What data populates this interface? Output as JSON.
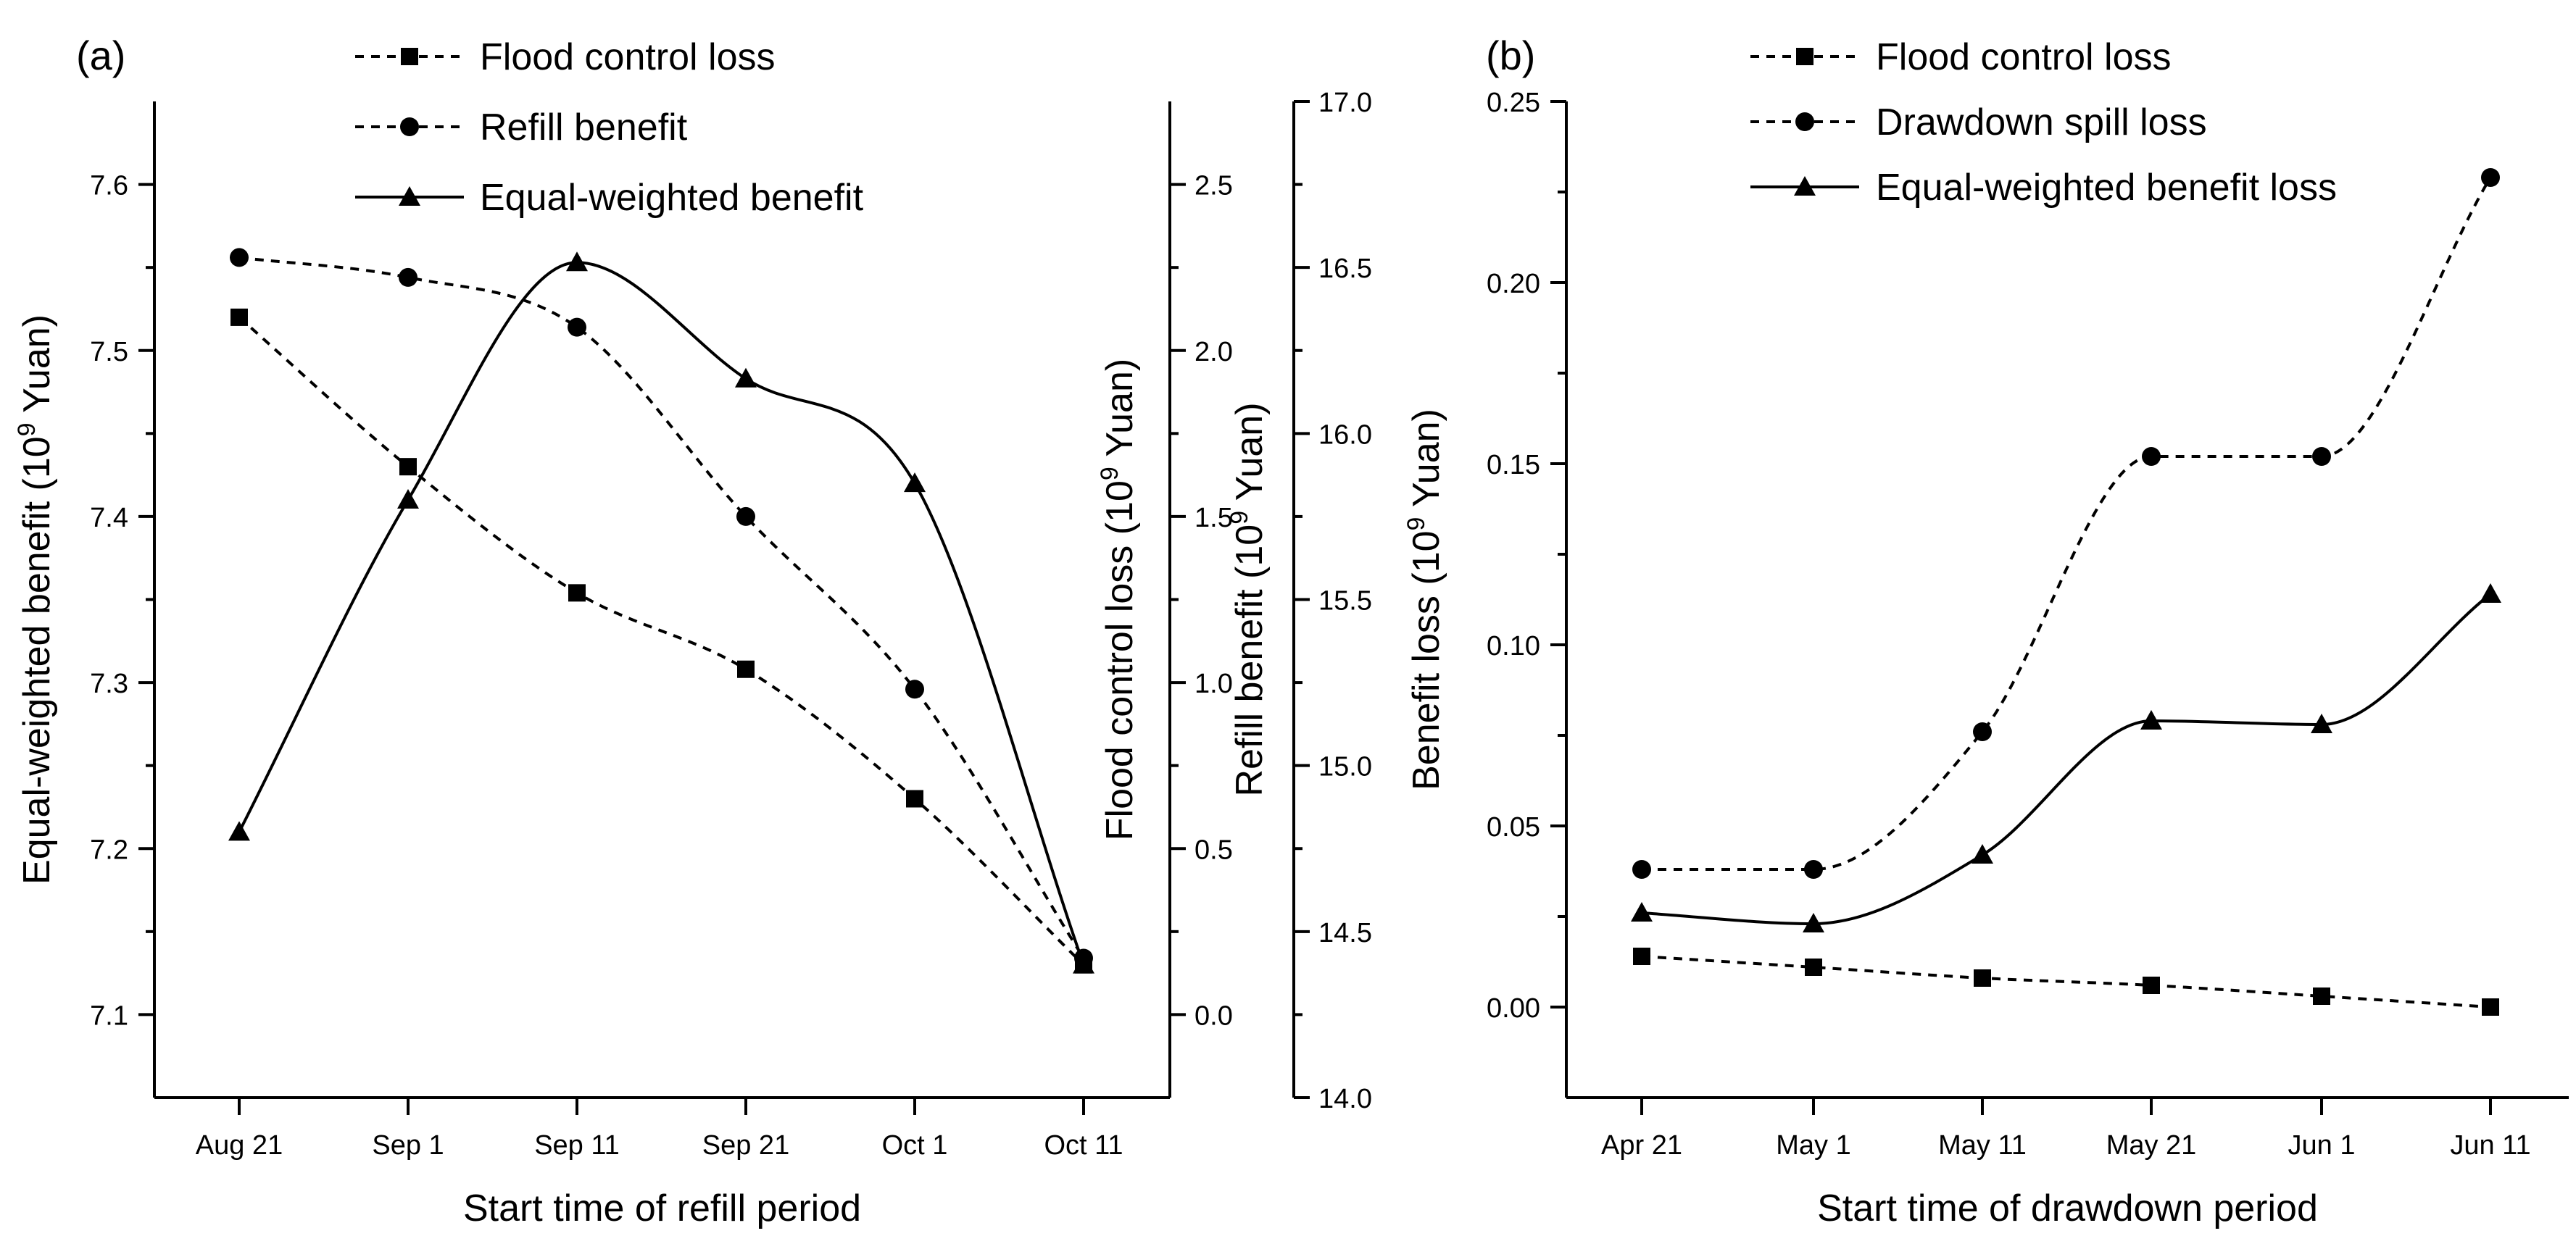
{
  "chart_data": [
    {
      "type": "line",
      "panel_label": "(a)",
      "xlabel": "Start time of refill period",
      "categories": [
        "Aug 21",
        "Sep 1",
        "Sep 11",
        "Sep 21",
        "Oct 1",
        "Oct 11"
      ],
      "axes": {
        "y_left": {
          "label": "Equal-weighted benefit (10^9 Yuan)",
          "label_base": "Equal-weighted benefit (10",
          "label_exp": "9",
          "label_unit": " Yuan)",
          "ylim": [
            7.05,
            7.65
          ],
          "ticks": [
            7.1,
            7.2,
            7.3,
            7.4,
            7.5,
            7.6
          ],
          "tick_labels": [
            "7.1",
            "7.2",
            "7.3",
            "7.4",
            "7.5",
            "7.6"
          ]
        },
        "y_right1": {
          "label": "Flood control loss (10^9 Yuan)",
          "label_base": "Flood control loss (10",
          "label_exp": "9",
          "label_unit": " Yuan)",
          "ylim": [
            -0.25,
            2.75
          ],
          "ticks": [
            0.0,
            0.5,
            1.0,
            1.5,
            2.0,
            2.5
          ],
          "tick_labels": [
            "0.0",
            "0.5",
            "1.0",
            "1.5",
            "2.0",
            "2.5"
          ]
        },
        "y_right2": {
          "label": "Refill benefit (10^9 Yuan)",
          "label_base": "Refill benefit (10",
          "label_exp": "9",
          "label_unit": " Yuan)",
          "ylim": [
            14.0,
            17.0
          ],
          "ticks": [
            14.0,
            14.5,
            15.0,
            15.5,
            16.0,
            16.5,
            17.0
          ],
          "tick_labels": [
            "14.0",
            "14.5",
            "15.0",
            "15.5",
            "16.0",
            "16.5",
            "17.0"
          ]
        }
      },
      "series": [
        {
          "name": "Flood control loss",
          "axis": "y_right1",
          "marker": "square",
          "dash": true,
          "values": [
            2.1,
            1.65,
            1.27,
            1.04,
            0.65,
            0.15
          ]
        },
        {
          "name": "Refill benefit",
          "axis": "y_right2",
          "marker": "circle",
          "dash": true,
          "values": [
            16.53,
            16.47,
            16.32,
            15.75,
            15.23,
            14.42
          ]
        },
        {
          "name": "Equal-weighted benefit",
          "axis": "y_left",
          "marker": "triangle",
          "dash": false,
          "values": [
            7.21,
            7.41,
            7.553,
            7.483,
            7.42,
            7.13
          ]
        }
      ],
      "legend_position": "top"
    },
    {
      "type": "line",
      "panel_label": "(b)",
      "xlabel": "Start time of drawdown period",
      "categories": [
        "Apr 21",
        "May 1",
        "May 11",
        "May 21",
        "Jun 1",
        "Jun 11"
      ],
      "axes": {
        "y_left": {
          "label": "Benefit loss (10^9 Yuan)",
          "label_base": "Benefit loss (10",
          "label_exp": "9",
          "label_unit": " Yuan)",
          "ylim": [
            -0.025,
            0.25
          ],
          "ticks": [
            0.0,
            0.05,
            0.1,
            0.15,
            0.2,
            0.25
          ],
          "tick_labels": [
            "0.00",
            "0.05",
            "0.10",
            "0.15",
            "0.20",
            "0.25"
          ]
        }
      },
      "series": [
        {
          "name": "Flood control loss",
          "axis": "y_left",
          "marker": "square",
          "dash": true,
          "values": [
            0.014,
            0.011,
            0.008,
            0.006,
            0.003,
            0.0
          ]
        },
        {
          "name": "Drawdown spill loss",
          "axis": "y_left",
          "marker": "circle",
          "dash": true,
          "values": [
            0.038,
            0.038,
            0.076,
            0.152,
            0.152,
            0.229
          ]
        },
        {
          "name": "Equal-weighted benefit loss",
          "axis": "y_left",
          "marker": "triangle",
          "dash": false,
          "values": [
            0.026,
            0.023,
            0.042,
            0.079,
            0.078,
            0.114
          ]
        }
      ],
      "legend_position": "top"
    }
  ]
}
